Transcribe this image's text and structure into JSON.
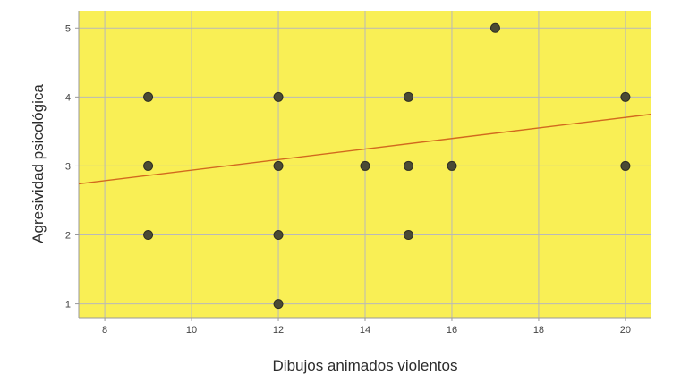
{
  "chart_data": {
    "type": "scatter",
    "xlabel": "Dibujos animados violentos",
    "ylabel": "Agresividad psicológica",
    "xlim": [
      7.4,
      20.6
    ],
    "ylim": [
      0.8,
      5.25
    ],
    "xticks": [
      8,
      10,
      12,
      14,
      16,
      18,
      20
    ],
    "yticks": [
      1,
      2,
      3,
      4,
      5
    ],
    "grid": true,
    "plot_background": "#f9ef55",
    "grid_color": "#b9b9b9",
    "point_color": "#4a4a35",
    "points": [
      {
        "x": 9,
        "y": 4
      },
      {
        "x": 9,
        "y": 3
      },
      {
        "x": 9,
        "y": 2
      },
      {
        "x": 12,
        "y": 4
      },
      {
        "x": 12,
        "y": 3
      },
      {
        "x": 12,
        "y": 2
      },
      {
        "x": 12,
        "y": 1
      },
      {
        "x": 14,
        "y": 3
      },
      {
        "x": 15,
        "y": 4
      },
      {
        "x": 15,
        "y": 3
      },
      {
        "x": 15,
        "y": 2
      },
      {
        "x": 16,
        "y": 3
      },
      {
        "x": 17,
        "y": 5
      },
      {
        "x": 20,
        "y": 4
      },
      {
        "x": 20,
        "y": 3
      }
    ],
    "fit_line": {
      "color": "#d2691e",
      "x": [
        7.4,
        20.6
      ],
      "y": [
        2.74,
        3.75
      ]
    }
  }
}
